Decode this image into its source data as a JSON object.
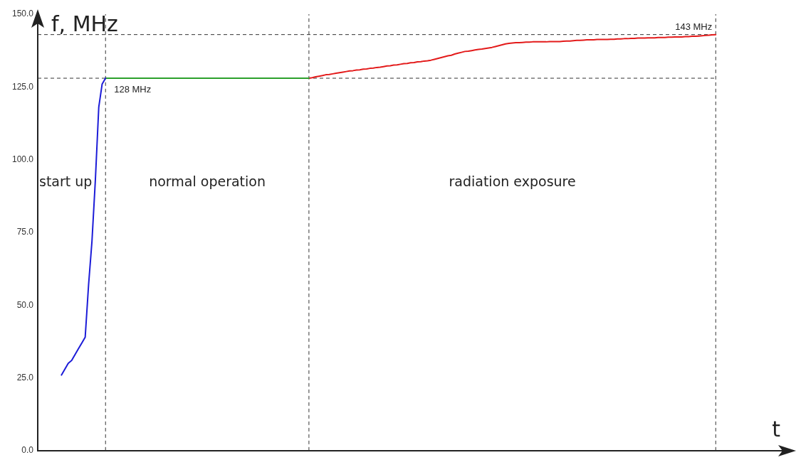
{
  "chart_data": {
    "type": "line",
    "xlabel": "t",
    "ylabel": "f, MHz",
    "categories": [
      null,
      null,
      null,
      null,
      null,
      null,
      null,
      null,
      null,
      null,
      null,
      null,
      null,
      null,
      null,
      null,
      null,
      null,
      null,
      null,
      null,
      null,
      null,
      null,
      null,
      null,
      null,
      null,
      null,
      null,
      null,
      null,
      null,
      null,
      null,
      null,
      null,
      null,
      null,
      null,
      null,
      null,
      null,
      null,
      null,
      null,
      null,
      null,
      null,
      null,
      null,
      null,
      null,
      null,
      null,
      null,
      null,
      null,
      null,
      null,
      null,
      null,
      null,
      null,
      null,
      null,
      null,
      null,
      null,
      null,
      null,
      null,
      null,
      null,
      null,
      null,
      null,
      null,
      null,
      null,
      null,
      null,
      null,
      null,
      null,
      null,
      null,
      null,
      null,
      null,
      null,
      null,
      null,
      null,
      null,
      null,
      null,
      null,
      null,
      null,
      null,
      null,
      null,
      null,
      null,
      null,
      null,
      null,
      null,
      null,
      null,
      null,
      null,
      null,
      null,
      null,
      null,
      null,
      null,
      null,
      null,
      null,
      null,
      null,
      null,
      null,
      null,
      null,
      null,
      null,
      null,
      null,
      null,
      null,
      null,
      null,
      null,
      null,
      null,
      null,
      null,
      null,
      null,
      null,
      null,
      null,
      null,
      null,
      null,
      null,
      null,
      null,
      null,
      null,
      null,
      null,
      null,
      null,
      null,
      null,
      null,
      null,
      null,
      null,
      null,
      null,
      null,
      null,
      null,
      null,
      null,
      null,
      null,
      null,
      null,
      null,
      null,
      null,
      null,
      null,
      null,
      null,
      null,
      null,
      null,
      null,
      null,
      null,
      null,
      null,
      null,
      null,
      null,
      null,
      null,
      null,
      null,
      null,
      null,
      null,
      null,
      null,
      null,
      null,
      null,
      null,
      null,
      null,
      null,
      null,
      null,
      null,
      null,
      null,
      null,
      null,
      null,
      null,
      null,
      null,
      null,
      null,
      null
    ],
    "series": [
      {
        "color": "#1c1cd8",
        "values": [
          null,
          null,
          null,
          null,
          null,
          null,
          null,
          26,
          28,
          30,
          31,
          33,
          35,
          37,
          39,
          57,
          72,
          93,
          118,
          126,
          128,
          null,
          null,
          null,
          null,
          null,
          null,
          null,
          null,
          null,
          null,
          null,
          null,
          null,
          null,
          null,
          null,
          null,
          null,
          null,
          null,
          null,
          null,
          null,
          null,
          null,
          null,
          null,
          null,
          null,
          null,
          null,
          null,
          null,
          null,
          null,
          null,
          null,
          null,
          null,
          null,
          null,
          null,
          null,
          null,
          null,
          null,
          null,
          null,
          null,
          null,
          null,
          null,
          null,
          null,
          null,
          null,
          null,
          null,
          null,
          null,
          null,
          null,
          null,
          null,
          null,
          null,
          null,
          null,
          null,
          null,
          null,
          null,
          null,
          null,
          null,
          null,
          null,
          null,
          null,
          null,
          null,
          null,
          null,
          null,
          null,
          null,
          null,
          null,
          null,
          null,
          null,
          null,
          null,
          null,
          null,
          null,
          null,
          null,
          null,
          null,
          null,
          null,
          null,
          null,
          null,
          null,
          null,
          null,
          null,
          null,
          null,
          null,
          null,
          null,
          null,
          null,
          null,
          null,
          null,
          null,
          null,
          null,
          null,
          null,
          null,
          null,
          null,
          null,
          null,
          null,
          null,
          null,
          null,
          null,
          null,
          null,
          null,
          null,
          null,
          null,
          null,
          null,
          null,
          null,
          null,
          null,
          null,
          null,
          null,
          null,
          null,
          null,
          null,
          null,
          null,
          null,
          null,
          null,
          null,
          null,
          null,
          null,
          null,
          null,
          null,
          null,
          null,
          null,
          null,
          null,
          null,
          null,
          null,
          null,
          null,
          null,
          null,
          null,
          null,
          null,
          null,
          null,
          null,
          null,
          null,
          null,
          null,
          null,
          null,
          null,
          null,
          null,
          null,
          null,
          null,
          null,
          null,
          null,
          null,
          null,
          null,
          null
        ]
      },
      {
        "color": "#2ca02c",
        "values": [
          null,
          null,
          null,
          null,
          null,
          null,
          null,
          null,
          null,
          null,
          null,
          null,
          null,
          null,
          null,
          null,
          null,
          null,
          null,
          null,
          128,
          128,
          128,
          128,
          128,
          128,
          128,
          128,
          128,
          128,
          128,
          128,
          128,
          128,
          128,
          128,
          128,
          128,
          128,
          128,
          128,
          128,
          128,
          128,
          128,
          128,
          128,
          128,
          128,
          128,
          128,
          128,
          128,
          128,
          128,
          128,
          128,
          128,
          128,
          128,
          128,
          128,
          128,
          128,
          128,
          128,
          128,
          128,
          128,
          128,
          128,
          128,
          128,
          128,
          128,
          128,
          128,
          128,
          128,
          128,
          128,
          null,
          null,
          null,
          null,
          null,
          null,
          null,
          null,
          null,
          null,
          null,
          null,
          null,
          null,
          null,
          null,
          null,
          null,
          null,
          null,
          null,
          null,
          null,
          null,
          null,
          null,
          null,
          null,
          null,
          null,
          null,
          null,
          null,
          null,
          null,
          null,
          null,
          null,
          null,
          null,
          null,
          null,
          null,
          null,
          null,
          null,
          null,
          null,
          null,
          null,
          null,
          null,
          null,
          null,
          null,
          null,
          null,
          null,
          null,
          null,
          null,
          null,
          null,
          null,
          null,
          null,
          null,
          null,
          null,
          null,
          null,
          null,
          null,
          null,
          null,
          null,
          null,
          null,
          null,
          null,
          null,
          null,
          null,
          null,
          null,
          null,
          null,
          null,
          null,
          null,
          null,
          null,
          null,
          null,
          null,
          null,
          null,
          null,
          null,
          null,
          null,
          null,
          null,
          null,
          null,
          null,
          null,
          null,
          null,
          null,
          null,
          null,
          null,
          null,
          null,
          null,
          null,
          null,
          null,
          null,
          null,
          null,
          null,
          null,
          null,
          null,
          null,
          null,
          null,
          null,
          null,
          null,
          null,
          null,
          null,
          null,
          null,
          null,
          null,
          null,
          null,
          null
        ]
      },
      {
        "color": "#e31a1a",
        "values": [
          null,
          null,
          null,
          null,
          null,
          null,
          null,
          null,
          null,
          null,
          null,
          null,
          null,
          null,
          null,
          null,
          null,
          null,
          null,
          null,
          null,
          null,
          null,
          null,
          null,
          null,
          null,
          null,
          null,
          null,
          null,
          null,
          null,
          null,
          null,
          null,
          null,
          null,
          null,
          null,
          null,
          null,
          null,
          null,
          null,
          null,
          null,
          null,
          null,
          null,
          null,
          null,
          null,
          null,
          null,
          null,
          null,
          null,
          null,
          null,
          null,
          null,
          null,
          null,
          null,
          null,
          null,
          null,
          null,
          null,
          null,
          null,
          null,
          null,
          null,
          null,
          null,
          null,
          null,
          null,
          128.0,
          128.2,
          128.5,
          128.7,
          128.9,
          129.2,
          129.3,
          129.5,
          129.7,
          129.9,
          130.1,
          130.3,
          130.5,
          130.6,
          130.8,
          130.9,
          131.1,
          131.2,
          131.4,
          131.5,
          131.7,
          131.8,
          132.0,
          132.2,
          132.3,
          132.5,
          132.6,
          132.8,
          133.0,
          133.1,
          133.3,
          133.4,
          133.6,
          133.7,
          133.9,
          134.0,
          134.2,
          134.5,
          134.8,
          135.1,
          135.4,
          135.7,
          135.9,
          136.3,
          136.6,
          136.9,
          137.2,
          137.3,
          137.5,
          137.7,
          137.9,
          138.0,
          138.2,
          138.4,
          138.6,
          138.9,
          139.2,
          139.5,
          139.8,
          140.0,
          140.1,
          140.2,
          140.2,
          140.3,
          140.4,
          140.4,
          140.5,
          140.5,
          140.5,
          140.5,
          140.5,
          140.6,
          140.6,
          140.6,
          140.6,
          140.7,
          140.8,
          140.8,
          140.9,
          141.0,
          141.0,
          141.1,
          141.2,
          141.2,
          141.2,
          141.3,
          141.3,
          141.3,
          141.3,
          141.4,
          141.4,
          141.5,
          141.5,
          141.6,
          141.6,
          141.7,
          141.7,
          141.8,
          141.8,
          141.8,
          141.9,
          141.9,
          141.9,
          142.0,
          142.0,
          142.0,
          142.1,
          142.1,
          142.2,
          142.2,
          142.2,
          142.3,
          142.3,
          142.4,
          142.4,
          142.5,
          142.6,
          142.7,
          142.8,
          142.9,
          143,
          null,
          null,
          null,
          null,
          null,
          null,
          null,
          null,
          null,
          null,
          null,
          null,
          null,
          null,
          null,
          null,
          null,
          null,
          null,
          null,
          null,
          null
        ]
      }
    ],
    "ylim": [
      0,
      150
    ],
    "yticks": [
      {
        "value": 0,
        "label": "0.0"
      },
      {
        "value": 25,
        "label": "25.0"
      },
      {
        "value": 50,
        "label": "50.0"
      },
      {
        "value": 75,
        "label": "75.0"
      },
      {
        "value": 100,
        "label": "100.0"
      },
      {
        "value": 125,
        "label": "125.0"
      },
      {
        "value": 150,
        "label": "150.0"
      }
    ],
    "ref_lines": [
      {
        "axis": "y",
        "value": 128,
        "label": "128 MHz"
      },
      {
        "axis": "y",
        "value": 143,
        "label": "143 MHz"
      }
    ],
    "annotations": [
      "start up",
      "normal operation",
      "radiation exposure"
    ],
    "grid": false,
    "legend": false,
    "marker": "none",
    "line_style": "solid",
    "tick_labels": "y"
  }
}
